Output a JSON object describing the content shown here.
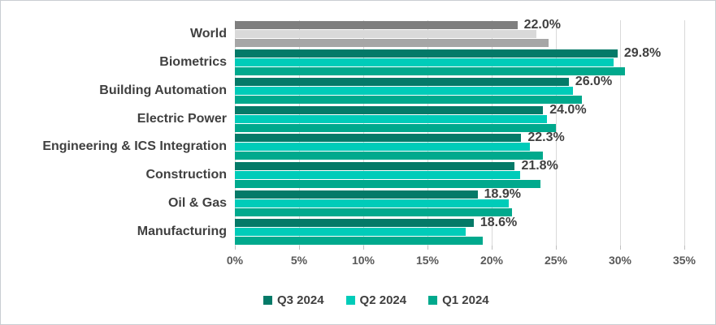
{
  "chart_data": {
    "type": "bar",
    "orientation": "horizontal",
    "title": "",
    "xlabel": "",
    "ylabel": "",
    "xlim": [
      0,
      35
    ],
    "grid": true,
    "legend_position": "bottom",
    "categories": [
      "World",
      "Biometrics",
      "Building Automation",
      "Electric Power",
      "Engineering & ICS Integration",
      "Construction",
      "Oil & Gas",
      "Manufacturing"
    ],
    "series": [
      {
        "name": "Q3 2024",
        "color": "#047a68",
        "world_color": "#7f7f7f",
        "values": [
          22.0,
          29.8,
          26.0,
          24.0,
          22.3,
          21.8,
          18.9,
          18.6
        ]
      },
      {
        "name": "Q2 2024",
        "color": "#00ccb9",
        "world_color": "#d9d9d9",
        "values": [
          23.5,
          29.5,
          26.3,
          24.3,
          23.0,
          22.2,
          21.3,
          18.0
        ]
      },
      {
        "name": "Q1 2024",
        "color": "#00a98d",
        "world_color": "#a6a6a6",
        "values": [
          24.4,
          30.4,
          27.0,
          25.0,
          24.0,
          23.8,
          21.6,
          19.3
        ]
      }
    ],
    "data_labels": [
      "22.0%",
      "29.8%",
      "26.0%",
      "24.0%",
      "22.3%",
      "21.8%",
      "18.9%",
      "18.6%"
    ],
    "x_ticks": [
      "0%",
      "5%",
      "10%",
      "15%",
      "20%",
      "25%",
      "30%",
      "35%"
    ],
    "x_tick_values": [
      0,
      5,
      10,
      15,
      20,
      25,
      30,
      35
    ],
    "colors": {
      "gridline": "#d9d9d9",
      "tick": "#bfbfbf",
      "label_text": "#404040",
      "axis_text": "#595959",
      "background": "#ffffff"
    }
  }
}
